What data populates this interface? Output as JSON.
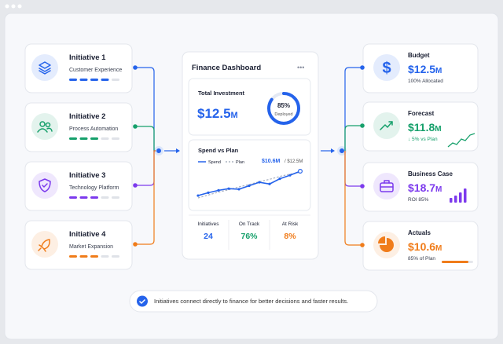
{
  "initiatives": [
    {
      "title": "Initiative 1",
      "subtitle": "Customer Experience",
      "color": "#2563eb"
    },
    {
      "title": "Initiative 2",
      "subtitle": "Process Automation",
      "color": "#16a06b"
    },
    {
      "title": "Initiative 3",
      "subtitle": "Technology Platform",
      "color": "#7c3aed"
    },
    {
      "title": "Initiative 4",
      "subtitle": "Market Expansion",
      "color": "#f07c1a"
    }
  ],
  "dashboard": {
    "title": "Finance Dashboard",
    "total": {
      "label": "Total Investment",
      "amount": "$12.5",
      "unit": "M",
      "deployed": {
        "value": 85,
        "label": "85%"
      },
      "deployed_label": "Deployed"
    },
    "spend": {
      "title": "Spend vs Plan",
      "legend_spend": "Spend",
      "legend_plan": "Plan",
      "current": "$10.6M",
      "target": "/ $12.5M",
      "spend_values": [
        2.0,
        2.5,
        2.9,
        3.2,
        3.1,
        3.7,
        4.3,
        4.0,
        4.9,
        5.5,
        6.2
      ],
      "plan_values": [
        1.6,
        2.1,
        2.6,
        3.0,
        3.5,
        3.9,
        4.4,
        4.8,
        5.3,
        5.7,
        6.0
      ]
    },
    "stats": [
      {
        "label": "Initiatives",
        "value": "24",
        "color": "#2563eb"
      },
      {
        "label": "On Track",
        "value": "76%",
        "color": "#16a06b"
      },
      {
        "label": "At Risk",
        "value": "8%",
        "color": "#f07c1a"
      }
    ]
  },
  "outputs": [
    {
      "title": "Budget",
      "amount": "$12.5",
      "unit": "M",
      "note": "100% Allocated",
      "color": "#2563eb"
    },
    {
      "title": "Forecast",
      "amount": "$11.8",
      "unit": "M",
      "note": "↓ 5% vs Plan",
      "color": "#16a06b"
    },
    {
      "title": "Business Case",
      "amount": "$18.7",
      "unit": "M",
      "note": "ROI 85%",
      "color": "#7c3aed"
    },
    {
      "title": "Actuals",
      "amount": "$10.6",
      "unit": "M",
      "note": "85% of Plan",
      "color": "#f07c1a"
    }
  ],
  "footer": "Initiatives connect directly to finance for better decisions and faster results."
}
